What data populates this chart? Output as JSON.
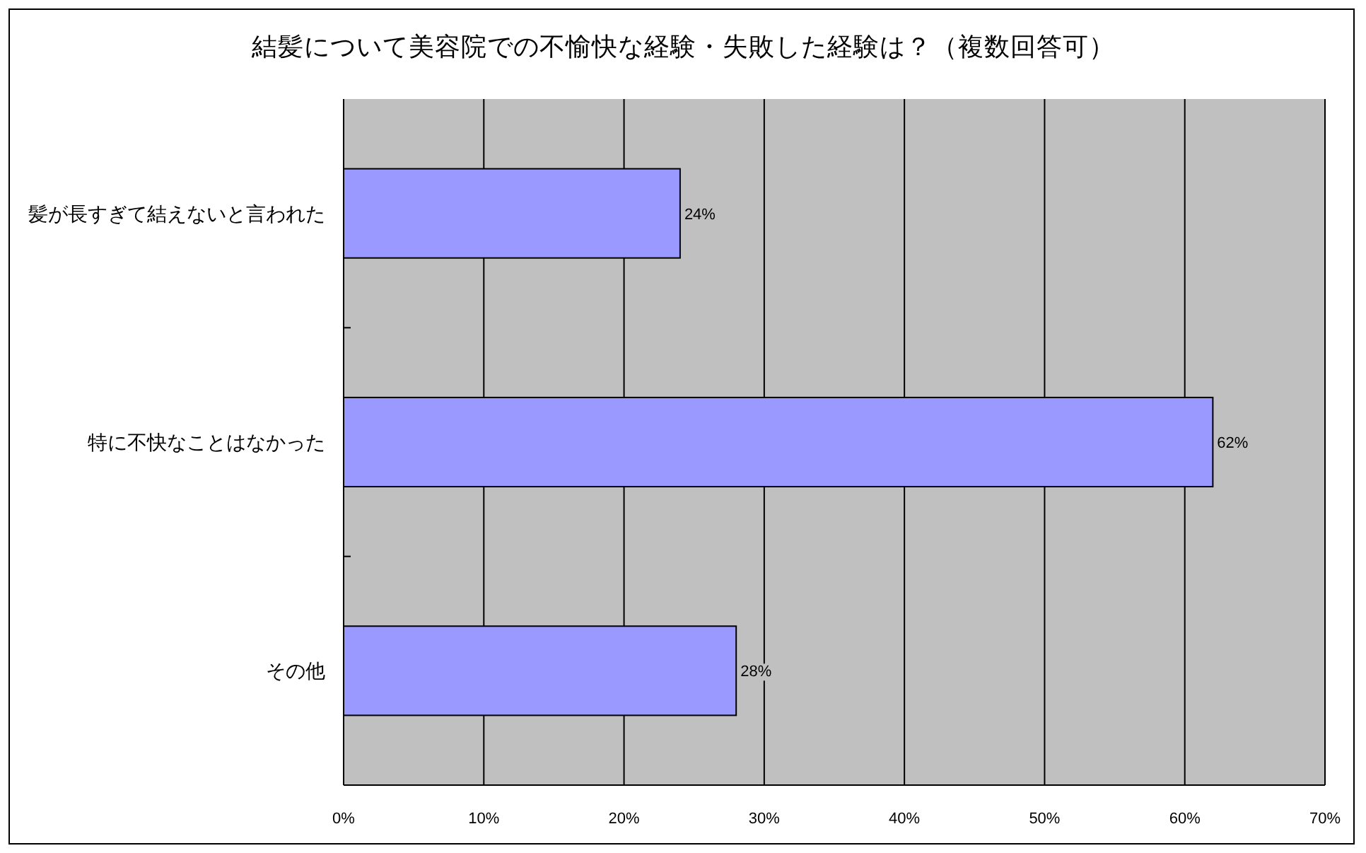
{
  "chart_data": {
    "type": "bar",
    "orientation": "horizontal",
    "title": "結髪について美容院での不愉快な経験・失敗した経験は？（複数回答可）",
    "categories": [
      "髪が長すぎて結えないと言われた",
      "特に不快なことはなかった",
      "その他"
    ],
    "values": [
      24,
      62,
      28
    ],
    "value_labels": [
      "24%",
      "62%",
      "28%"
    ],
    "color": "#9999ff",
    "xlim": [
      0,
      70
    ],
    "xticks": [
      {
        "value": 0,
        "label": "0%"
      },
      {
        "value": 10,
        "label": "10%"
      },
      {
        "value": 20,
        "label": "20%"
      },
      {
        "value": 30,
        "label": "30%"
      },
      {
        "value": 40,
        "label": "40%"
      },
      {
        "value": 50,
        "label": "50%"
      },
      {
        "value": 60,
        "label": "60%"
      },
      {
        "value": 70,
        "label": "70%"
      }
    ],
    "grid": "x"
  }
}
